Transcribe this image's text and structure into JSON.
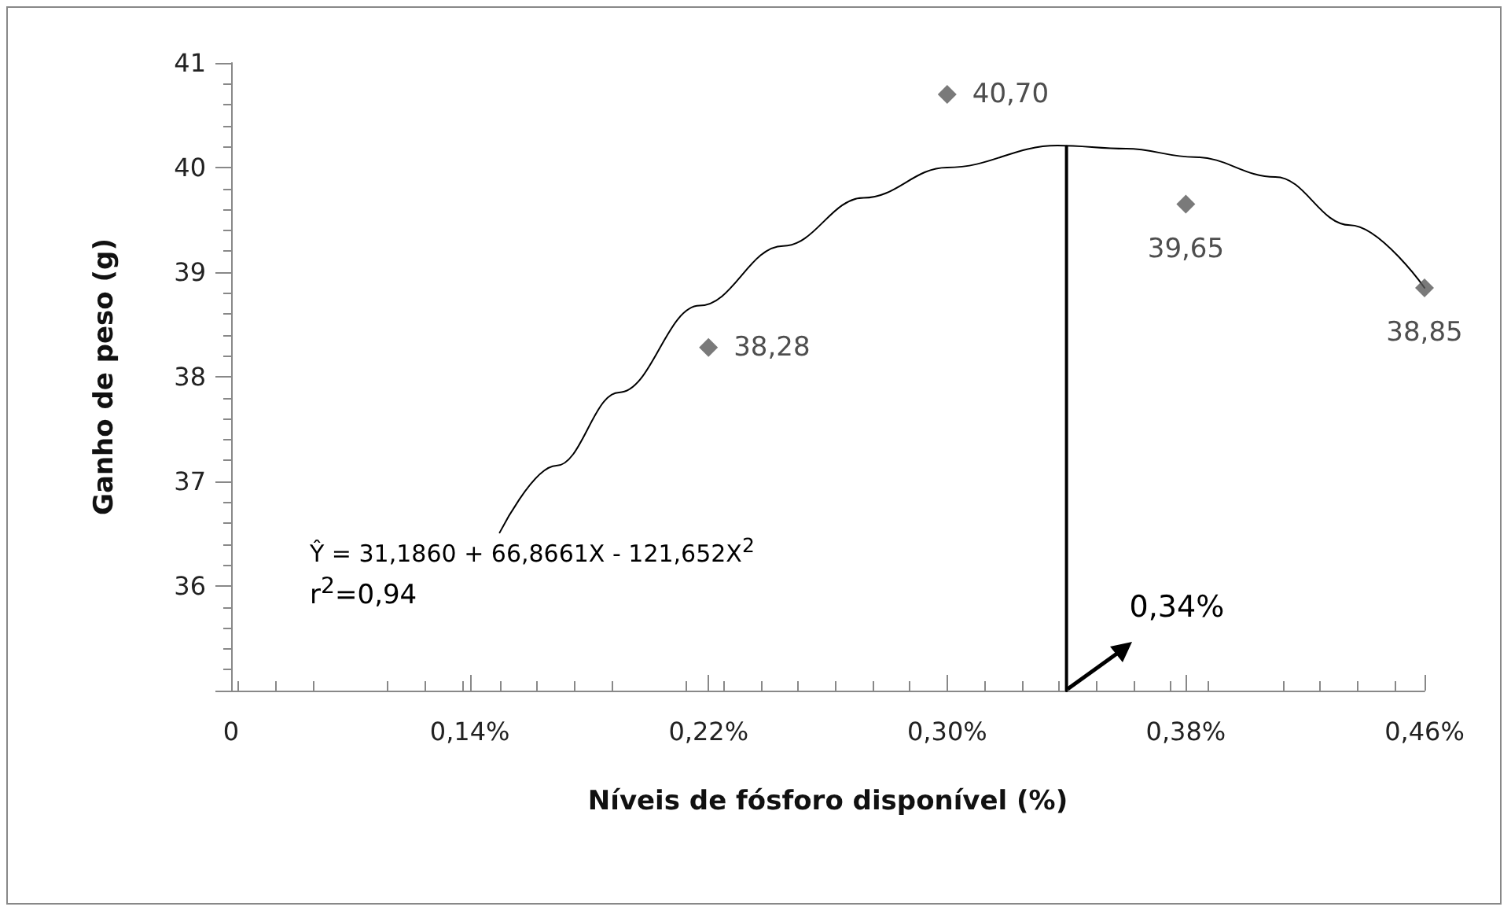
{
  "chart_data": {
    "type": "scatter",
    "xlabel": "Níveis de fósforo disponível (%)",
    "ylabel": "Ganho de peso (g)",
    "x": [
      0.22,
      0.3,
      0.38,
      0.46
    ],
    "series": [
      {
        "color": "#595959",
        "values": [
          38.28,
          40.7,
          39.65,
          38.85
        ],
        "value_labels": [
          "38,28",
          "40,70",
          "39,65",
          "38,85"
        ]
      },
      {
        "type": "line",
        "color": "#000000",
        "marker": "none",
        "x": [
          0.15,
          0.169,
          0.19,
          0.217,
          0.245,
          0.272,
          0.3,
          0.337,
          0.36,
          0.383,
          0.41,
          0.435,
          0.46
        ],
        "values": [
          36.51,
          37.15,
          37.85,
          38.68,
          39.25,
          39.71,
          40.0,
          40.21,
          40.18,
          40.1,
          39.91,
          39.45,
          38.85
        ]
      },
      {
        "type": "line",
        "color": "#000000",
        "marker": "none",
        "x": [
          0.34,
          0.34
        ],
        "values": [
          35,
          40.2
        ]
      }
    ],
    "xlim": [
      0.06,
      0.46
    ],
    "xticks": [
      {
        "value": 0.06,
        "label": "0"
      },
      {
        "value": 0.14,
        "label": "0,14%"
      },
      {
        "value": 0.22,
        "label": "0,22%"
      },
      {
        "value": 0.3,
        "label": "0,30%"
      },
      {
        "value": 0.38,
        "label": "0,38%"
      },
      {
        "value": 0.46,
        "label": "0,46%"
      }
    ],
    "ylim": [
      35,
      41
    ],
    "yticks": [
      {
        "value": 35,
        "label": null
      },
      36,
      37,
      38,
      39,
      40,
      41
    ],
    "marker": "diamond",
    "grid": false,
    "annotations": [
      "Ŷ = 31,1860 + 66,8661X - 121,652X$^{2}$",
      "r$^{2}$=0,94",
      {
        "text": "0,34%",
        "x": 0.34,
        "y": 35
      }
    ]
  }
}
